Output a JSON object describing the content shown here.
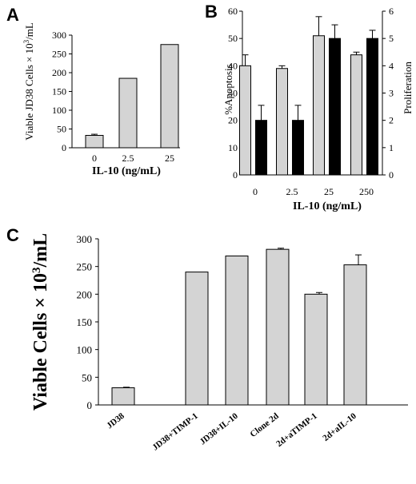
{
  "colors": {
    "bar_light": "#d4d4d4",
    "bar_dark": "#000000",
    "axis": "#000000"
  },
  "chart_data": [
    {
      "panel": "A",
      "type": "bar",
      "categories": [
        "0",
        "2.5",
        "25"
      ],
      "values": [
        33,
        185,
        275
      ],
      "error": [
        3,
        0,
        0
      ],
      "xlabel": "IL-10 (ng/mL)",
      "ylabel": "Viable JD38 Cells × 10",
      "ylabel_sup": "3",
      "ylabel_tail": "/mL",
      "ylim": [
        0,
        300
      ],
      "yticks": [
        0,
        50,
        100,
        150,
        200,
        250,
        300
      ]
    },
    {
      "panel": "B",
      "type": "bar",
      "categories": [
        "0",
        "2.5",
        "25",
        "250"
      ],
      "series": [
        {
          "axis": "left",
          "color": "#d4d4d4",
          "values": [
            40,
            39,
            51,
            44
          ],
          "error": [
            4,
            1,
            7,
            1
          ]
        },
        {
          "axis": "right",
          "color": "#000000",
          "values": [
            2,
            2,
            5,
            5
          ],
          "error": [
            0.55,
            0.55,
            0.5,
            0.3
          ]
        }
      ],
      "xlabel": "IL-10 (ng/mL)",
      "ylabel_left": "%Apoptosis",
      "ylabel_right": "Proliferation",
      "ylim_left": [
        0,
        60
      ],
      "ylim_right": [
        0,
        6
      ],
      "yticks_left": [
        0,
        10,
        20,
        30,
        40,
        50,
        60
      ],
      "yticks_right": [
        0,
        1,
        2,
        3,
        4,
        5,
        6
      ]
    },
    {
      "panel": "C",
      "type": "bar",
      "categories": [
        "JD38",
        "JD38+TIMP-1",
        "JD38+IL-10",
        "Clone 2d",
        "2d+aTIMP-1",
        "2d+aIL-10"
      ],
      "values": [
        31,
        240,
        269,
        281,
        200,
        253
      ],
      "error": [
        1,
        0,
        0,
        2,
        3,
        18
      ],
      "ylabel": "Viable Cells × 10",
      "ylabel_sup": "3",
      "ylabel_tail": "/mL",
      "ylim": [
        0,
        300
      ],
      "yticks": [
        0,
        50,
        100,
        150,
        200,
        250,
        300
      ]
    }
  ]
}
